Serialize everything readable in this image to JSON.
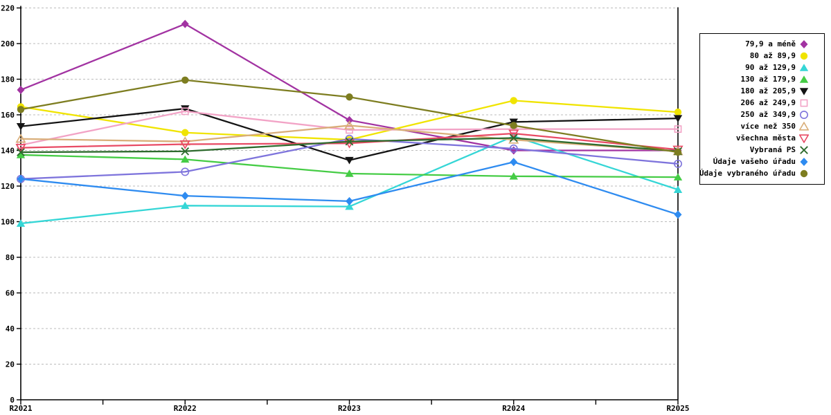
{
  "chart_data": {
    "type": "line",
    "title": "",
    "xlabel": "",
    "ylabel": "",
    "categories": [
      "R2021",
      "R2022",
      "R2023",
      "R2024",
      "R2025"
    ],
    "ylim": [
      0,
      220
    ],
    "ytick_step": 20,
    "grid": "horizontal-dashed",
    "gridline_color": "#bbbbbb",
    "axis_color": "#000000",
    "background_color": "#ffffff",
    "legend_position": "right",
    "series": [
      {
        "name": "79,9 a méně",
        "color": "#a233a2",
        "marker": "diamond",
        "fill": "filled",
        "values": [
          174,
          211,
          157,
          140,
          140
        ]
      },
      {
        "name": "80 až 89,9",
        "color": "#f0e400",
        "marker": "circle",
        "fill": "filled",
        "values": [
          164.5,
          150,
          146,
          168,
          161.5
        ]
      },
      {
        "name": "90 až 129,9",
        "color": "#35d6d6",
        "marker": "triangle-up",
        "fill": "filled",
        "values": [
          99,
          109,
          108.5,
          148,
          118
        ]
      },
      {
        "name": "130 až 179,9",
        "color": "#45cc45",
        "marker": "triangle-up",
        "fill": "filled",
        "values": [
          137.5,
          135,
          127,
          125.5,
          125
        ]
      },
      {
        "name": "180 až 205,9",
        "color": "#141414",
        "marker": "triangle-down",
        "fill": "filled",
        "values": [
          153.5,
          163.5,
          134.5,
          156,
          158
        ]
      },
      {
        "name": "206 až 249,9",
        "color": "#f2a3c6",
        "marker": "square",
        "fill": "open",
        "values": [
          143,
          162,
          151.5,
          152,
          152
        ]
      },
      {
        "name": "250 až 349,9",
        "color": "#7e74dc",
        "marker": "circle",
        "fill": "open",
        "values": [
          124,
          128,
          146.5,
          141,
          132.5
        ]
      },
      {
        "name": "více než 350",
        "color": "#d9ae79",
        "marker": "triangle-up",
        "fill": "open",
        "values": [
          146.5,
          145,
          154,
          146,
          139.5
        ]
      },
      {
        "name": "všechna města",
        "color": "#e84a64",
        "marker": "triangle-down",
        "fill": "open",
        "values": [
          141.5,
          143.5,
          144,
          149.5,
          140.5
        ]
      },
      {
        "name": "Vybraná PS",
        "color": "#2e6b2e",
        "marker": "x",
        "fill": "open",
        "values": [
          139,
          139.5,
          145,
          147,
          139.5
        ]
      },
      {
        "name": "Údaje vašeho úřadu",
        "color": "#2e8bf0",
        "marker": "diamond",
        "fill": "filled",
        "values": [
          124,
          114.5,
          111.5,
          133.5,
          104
        ]
      },
      {
        "name": "Údaje vybraného úřadu",
        "color": "#7d7d20",
        "marker": "circle",
        "fill": "filled",
        "values": [
          163,
          179.5,
          170,
          154,
          139
        ]
      }
    ]
  }
}
